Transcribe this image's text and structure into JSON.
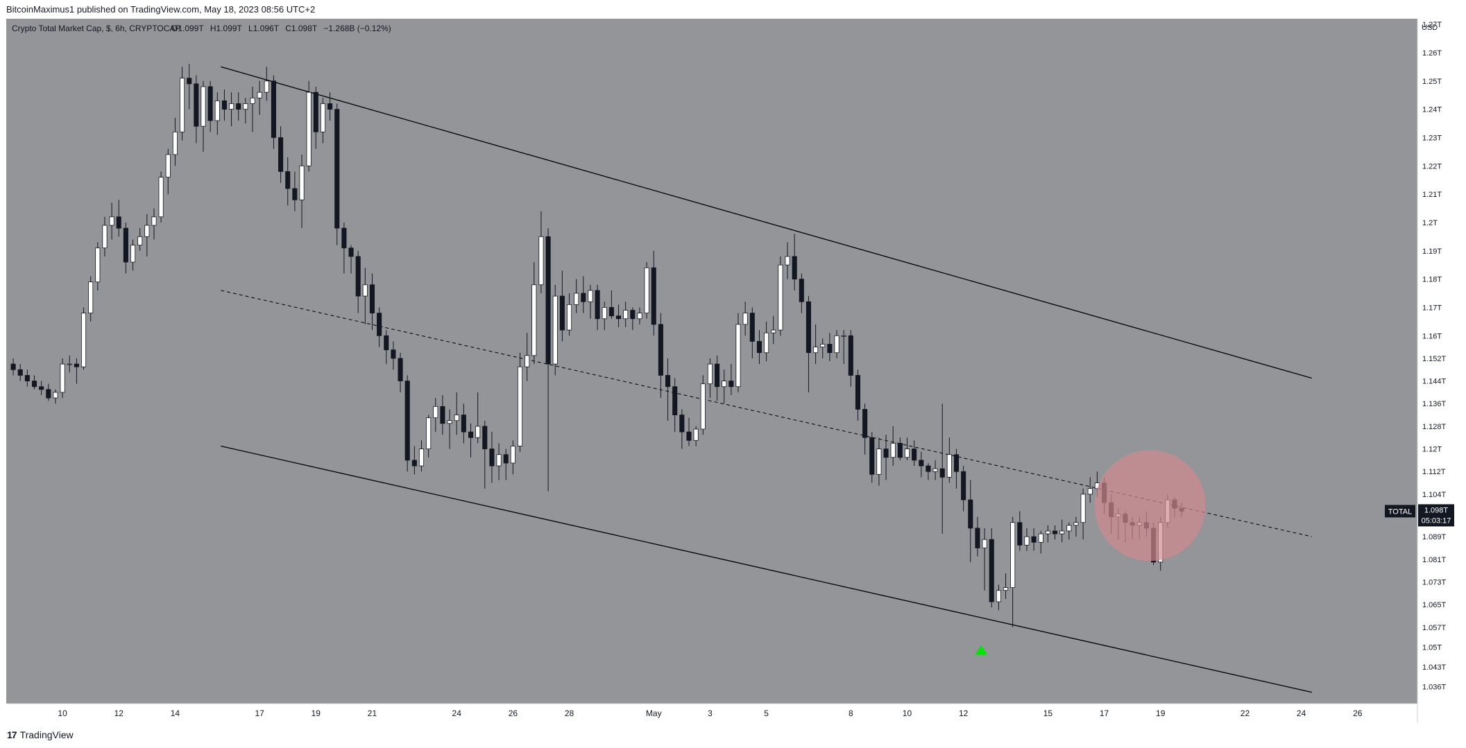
{
  "header": {
    "published": "BitcoinMaximus1 published on TradingView.com, May 18, 2023 08:56 UTC+2"
  },
  "legend": {
    "symbol": "Crypto Total Market Cap, $, 6h, CRYPTOCAP",
    "o_label": "O",
    "o_value": "1.099T",
    "h_label": "H",
    "h_value": "1.099T",
    "l_label": "L",
    "l_value": "1.096T",
    "c_label": "C",
    "c_value": "1.098T",
    "change": "−1.268B (−0.12%)"
  },
  "price_label": {
    "name": "TOTAL",
    "value": "1.098T",
    "countdown": "05:03:17"
  },
  "footer": {
    "brand": "TradingView",
    "mark": "17"
  },
  "colors": {
    "chart_bg": "#939598",
    "axis_bg": "#ffffff",
    "up_candle": "#ffffff",
    "down_candle": "#131722",
    "channel_line": "#000000",
    "highlight_circle": "#d08a8e",
    "arrow": "#00e600"
  },
  "chart_data": {
    "type": "candlestick",
    "title": "Crypto Total Market Cap, $, 6h, CRYPTOCAP",
    "y_unit": "USD",
    "ylim": [
      1.03,
      1.272
    ],
    "xlim": [
      0,
      200
    ],
    "y_tick_labels": [
      "1.27T",
      "1.26T",
      "1.25T",
      "1.24T",
      "1.23T",
      "1.22T",
      "1.21T",
      "1.2T",
      "1.19T",
      "1.18T",
      "1.17T",
      "1.16T",
      "1.152T",
      "1.144T",
      "1.136T",
      "1.128T",
      "1.12T",
      "1.112T",
      "1.104T",
      "1.089T",
      "1.081T",
      "1.073T",
      "1.065T",
      "1.057T",
      "1.05T",
      "1.043T",
      "1.036T"
    ],
    "y_tick_values": [
      1.27,
      1.26,
      1.25,
      1.24,
      1.23,
      1.22,
      1.21,
      1.2,
      1.19,
      1.18,
      1.17,
      1.16,
      1.152,
      1.144,
      1.136,
      1.128,
      1.12,
      1.112,
      1.104,
      1.089,
      1.081,
      1.073,
      1.065,
      1.057,
      1.05,
      1.043,
      1.036
    ],
    "x_tick_labels": [
      "10",
      "12",
      "14",
      "17",
      "19",
      "21",
      "24",
      "26",
      "28",
      "May",
      "3",
      "5",
      "8",
      "10",
      "12",
      "15",
      "17",
      "19",
      "22",
      "24",
      "26"
    ],
    "x_tick_positions": [
      7.5,
      15.5,
      23.5,
      35.5,
      43.5,
      51.5,
      63.5,
      71.5,
      79.5,
      91.5,
      99.5,
      107.5,
      119.5,
      127.5,
      135.5,
      147.5,
      155.5,
      163.5,
      175.5,
      183.5,
      191.5
    ],
    "candles": [
      [
        1.15,
        1.152,
        1.146,
        1.148
      ],
      [
        1.148,
        1.15,
        1.144,
        1.146
      ],
      [
        1.146,
        1.148,
        1.142,
        1.144
      ],
      [
        1.144,
        1.146,
        1.141,
        1.142
      ],
      [
        1.142,
        1.144,
        1.139,
        1.141
      ],
      [
        1.141,
        1.143,
        1.137,
        1.138
      ],
      [
        1.138,
        1.141,
        1.136,
        1.14
      ],
      [
        1.14,
        1.152,
        1.138,
        1.15
      ],
      [
        1.15,
        1.153,
        1.147,
        1.15
      ],
      [
        1.15,
        1.152,
        1.143,
        1.149
      ],
      [
        1.149,
        1.17,
        1.148,
        1.168
      ],
      [
        1.168,
        1.181,
        1.165,
        1.179
      ],
      [
        1.179,
        1.193,
        1.176,
        1.191
      ],
      [
        1.191,
        1.202,
        1.188,
        1.199
      ],
      [
        1.199,
        1.207,
        1.194,
        1.202
      ],
      [
        1.202,
        1.208,
        1.195,
        1.198
      ],
      [
        1.198,
        1.2,
        1.182,
        1.186
      ],
      [
        1.186,
        1.194,
        1.183,
        1.192
      ],
      [
        1.192,
        1.198,
        1.19,
        1.195
      ],
      [
        1.195,
        1.203,
        1.188,
        1.199
      ],
      [
        1.199,
        1.205,
        1.194,
        1.202
      ],
      [
        1.202,
        1.218,
        1.2,
        1.216
      ],
      [
        1.216,
        1.226,
        1.21,
        1.224
      ],
      [
        1.224,
        1.237,
        1.22,
        1.232
      ],
      [
        1.232,
        1.255,
        1.229,
        1.251
      ],
      [
        1.251,
        1.256,
        1.24,
        1.249
      ],
      [
        1.249,
        1.252,
        1.228,
        1.234
      ],
      [
        1.234,
        1.25,
        1.225,
        1.248
      ],
      [
        1.248,
        1.25,
        1.232,
        1.236
      ],
      [
        1.236,
        1.246,
        1.231,
        1.243
      ],
      [
        1.243,
        1.247,
        1.236,
        1.24
      ],
      [
        1.24,
        1.246,
        1.234,
        1.242
      ],
      [
        1.242,
        1.246,
        1.236,
        1.24
      ],
      [
        1.24,
        1.244,
        1.235,
        1.242
      ],
      [
        1.242,
        1.248,
        1.232,
        1.244
      ],
      [
        1.244,
        1.25,
        1.238,
        1.246
      ],
      [
        1.246,
        1.255,
        1.243,
        1.25
      ],
      [
        1.25,
        1.252,
        1.226,
        1.23
      ],
      [
        1.23,
        1.234,
        1.214,
        1.218
      ],
      [
        1.218,
        1.223,
        1.206,
        1.212
      ],
      [
        1.212,
        1.218,
        1.204,
        1.208
      ],
      [
        1.208,
        1.224,
        1.198,
        1.22
      ],
      [
        1.22,
        1.25,
        1.218,
        1.246
      ],
      [
        1.246,
        1.248,
        1.226,
        1.232
      ],
      [
        1.232,
        1.244,
        1.228,
        1.242
      ],
      [
        1.242,
        1.246,
        1.236,
        1.24
      ],
      [
        1.24,
        1.242,
        1.192,
        1.198
      ],
      [
        1.198,
        1.2,
        1.182,
        1.191
      ],
      [
        1.191,
        1.192,
        1.182,
        1.188
      ],
      [
        1.188,
        1.19,
        1.168,
        1.174
      ],
      [
        1.174,
        1.184,
        1.164,
        1.178
      ],
      [
        1.178,
        1.182,
        1.162,
        1.168
      ],
      [
        1.168,
        1.17,
        1.156,
        1.16
      ],
      [
        1.16,
        1.162,
        1.15,
        1.155
      ],
      [
        1.155,
        1.158,
        1.148,
        1.152
      ],
      [
        1.152,
        1.154,
        1.14,
        1.144
      ],
      [
        1.144,
        1.146,
        1.112,
        1.116
      ],
      [
        1.116,
        1.121,
        1.111,
        1.114
      ],
      [
        1.114,
        1.123,
        1.112,
        1.12
      ],
      [
        1.12,
        1.132,
        1.117,
        1.131
      ],
      [
        1.131,
        1.138,
        1.126,
        1.135
      ],
      [
        1.135,
        1.139,
        1.125,
        1.129
      ],
      [
        1.129,
        1.134,
        1.12,
        1.13
      ],
      [
        1.13,
        1.14,
        1.125,
        1.132
      ],
      [
        1.132,
        1.136,
        1.122,
        1.126
      ],
      [
        1.126,
        1.129,
        1.117,
        1.124
      ],
      [
        1.124,
        1.14,
        1.122,
        1.128
      ],
      [
        1.128,
        1.13,
        1.106,
        1.12
      ],
      [
        1.12,
        1.126,
        1.108,
        1.114
      ],
      [
        1.114,
        1.122,
        1.109,
        1.118
      ],
      [
        1.118,
        1.12,
        1.109,
        1.115
      ],
      [
        1.115,
        1.123,
        1.111,
        1.121
      ],
      [
        1.121,
        1.154,
        1.119,
        1.149
      ],
      [
        1.149,
        1.161,
        1.144,
        1.153
      ],
      [
        1.153,
        1.186,
        1.15,
        1.178
      ],
      [
        1.178,
        1.204,
        1.175,
        1.195
      ],
      [
        1.195,
        1.198,
        1.105,
        1.15
      ],
      [
        1.15,
        1.178,
        1.146,
        1.174
      ],
      [
        1.174,
        1.183,
        1.158,
        1.162
      ],
      [
        1.162,
        1.175,
        1.16,
        1.171
      ],
      [
        1.171,
        1.18,
        1.168,
        1.175
      ],
      [
        1.175,
        1.181,
        1.168,
        1.172
      ],
      [
        1.172,
        1.178,
        1.166,
        1.176
      ],
      [
        1.176,
        1.178,
        1.162,
        1.166
      ],
      [
        1.166,
        1.172,
        1.162,
        1.17
      ],
      [
        1.17,
        1.176,
        1.166,
        1.167
      ],
      [
        1.167,
        1.171,
        1.163,
        1.166
      ],
      [
        1.166,
        1.172,
        1.163,
        1.169
      ],
      [
        1.169,
        1.17,
        1.162,
        1.166
      ],
      [
        1.166,
        1.17,
        1.164,
        1.168
      ],
      [
        1.168,
        1.186,
        1.166,
        1.184
      ],
      [
        1.184,
        1.19,
        1.16,
        1.164
      ],
      [
        1.164,
        1.168,
        1.138,
        1.146
      ],
      [
        1.146,
        1.152,
        1.13,
        1.142
      ],
      [
        1.142,
        1.145,
        1.126,
        1.132
      ],
      [
        1.132,
        1.134,
        1.12,
        1.126
      ],
      [
        1.126,
        1.131,
        1.121,
        1.123
      ],
      [
        1.123,
        1.128,
        1.121,
        1.127
      ],
      [
        1.127,
        1.146,
        1.125,
        1.143
      ],
      [
        1.143,
        1.152,
        1.138,
        1.15
      ],
      [
        1.15,
        1.153,
        1.137,
        1.142
      ],
      [
        1.142,
        1.148,
        1.136,
        1.144
      ],
      [
        1.144,
        1.15,
        1.139,
        1.142
      ],
      [
        1.142,
        1.168,
        1.14,
        1.164
      ],
      [
        1.164,
        1.172,
        1.16,
        1.168
      ],
      [
        1.168,
        1.17,
        1.152,
        1.158
      ],
      [
        1.158,
        1.162,
        1.15,
        1.154
      ],
      [
        1.154,
        1.165,
        1.151,
        1.161
      ],
      [
        1.161,
        1.167,
        1.157,
        1.162
      ],
      [
        1.162,
        1.188,
        1.16,
        1.185
      ],
      [
        1.185,
        1.193,
        1.18,
        1.188
      ],
      [
        1.188,
        1.196,
        1.176,
        1.18
      ],
      [
        1.18,
        1.182,
        1.168,
        1.172
      ],
      [
        1.172,
        1.174,
        1.14,
        1.154
      ],
      [
        1.154,
        1.164,
        1.15,
        1.156
      ],
      [
        1.156,
        1.159,
        1.152,
        1.157
      ],
      [
        1.157,
        1.161,
        1.151,
        1.154
      ],
      [
        1.154,
        1.162,
        1.152,
        1.16
      ],
      [
        1.16,
        1.162,
        1.15,
        1.16
      ],
      [
        1.16,
        1.162,
        1.142,
        1.146
      ],
      [
        1.146,
        1.148,
        1.13,
        1.134
      ],
      [
        1.134,
        1.136,
        1.118,
        1.124
      ],
      [
        1.124,
        1.126,
        1.108,
        1.111
      ],
      [
        1.111,
        1.124,
        1.107,
        1.12
      ],
      [
        1.12,
        1.125,
        1.109,
        1.117
      ],
      [
        1.117,
        1.128,
        1.114,
        1.122
      ],
      [
        1.122,
        1.124,
        1.116,
        1.117
      ],
      [
        1.117,
        1.124,
        1.116,
        1.12
      ],
      [
        1.12,
        1.123,
        1.114,
        1.116
      ],
      [
        1.116,
        1.119,
        1.11,
        1.114
      ],
      [
        1.114,
        1.115,
        1.109,
        1.112
      ],
      [
        1.112,
        1.116,
        1.109,
        1.113
      ],
      [
        1.113,
        1.136,
        1.09,
        1.11
      ],
      [
        1.11,
        1.124,
        1.108,
        1.118
      ],
      [
        1.118,
        1.12,
        1.106,
        1.112
      ],
      [
        1.112,
        1.114,
        1.098,
        1.102
      ],
      [
        1.102,
        1.109,
        1.08,
        1.092
      ],
      [
        1.092,
        1.096,
        1.082,
        1.085
      ],
      [
        1.085,
        1.092,
        1.07,
        1.088
      ],
      [
        1.088,
        1.092,
        1.064,
        1.066
      ],
      [
        1.066,
        1.072,
        1.063,
        1.07
      ],
      [
        1.07,
        1.076,
        1.067,
        1.071
      ],
      [
        1.071,
        1.096,
        1.057,
        1.094
      ],
      [
        1.094,
        1.098,
        1.084,
        1.086
      ],
      [
        1.086,
        1.092,
        1.084,
        1.089
      ],
      [
        1.089,
        1.092,
        1.084,
        1.087
      ],
      [
        1.087,
        1.091,
        1.083,
        1.09
      ],
      [
        1.09,
        1.093,
        1.087,
        1.091
      ],
      [
        1.091,
        1.093,
        1.088,
        1.09
      ],
      [
        1.09,
        1.095,
        1.087,
        1.091
      ],
      [
        1.091,
        1.094,
        1.088,
        1.093
      ],
      [
        1.093,
        1.096,
        1.089,
        1.094
      ],
      [
        1.094,
        1.106,
        1.088,
        1.104
      ],
      [
        1.104,
        1.11,
        1.101,
        1.106
      ],
      [
        1.106,
        1.112,
        1.103,
        1.108
      ],
      [
        1.108,
        1.11,
        1.097,
        1.101
      ],
      [
        1.101,
        1.104,
        1.09,
        1.096
      ],
      [
        1.096,
        1.099,
        1.088,
        1.097
      ],
      [
        1.097,
        1.098,
        1.087,
        1.094
      ],
      [
        1.094,
        1.096,
        1.088,
        1.093
      ],
      [
        1.093,
        1.096,
        1.088,
        1.094
      ],
      [
        1.094,
        1.098,
        1.089,
        1.092
      ],
      [
        1.092,
        1.094,
        1.079,
        1.08
      ],
      [
        1.08,
        1.096,
        1.077,
        1.094
      ],
      [
        1.094,
        1.104,
        1.092,
        1.102
      ],
      [
        1.102,
        1.103,
        1.096,
        1.099
      ],
      [
        1.099,
        1.101,
        1.096,
        1.098
      ]
    ],
    "channel": {
      "upper": [
        [
          30,
          1.255
        ],
        [
          185,
          1.145
        ]
      ],
      "middle": [
        [
          30,
          1.176
        ],
        [
          185,
          1.089
        ]
      ],
      "lower": [
        [
          30,
          1.121
        ],
        [
          185,
          1.034
        ]
      ]
    },
    "highlight": {
      "x": 162,
      "y": 1.1
    },
    "arrow": {
      "x": 138,
      "y": 1.049
    },
    "current_price": 1.098
  }
}
